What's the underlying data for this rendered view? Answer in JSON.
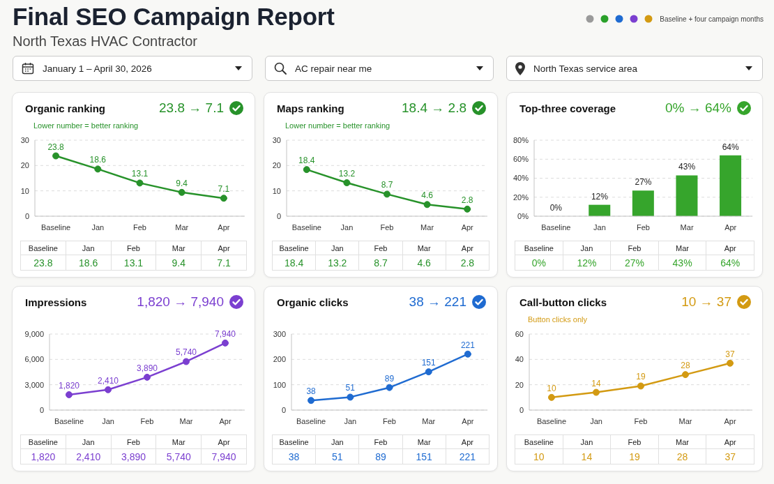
{
  "chart_data": [
    {
      "type": "other",
      "title": "Final SEO Campaign Report",
      "subtitle": "North Texas HVAC Contractor",
      "annotations": [
        "January 1 – April 30, 2026",
        "AC repair near me",
        "North Texas service area",
        "Baseline + four campaign months"
      ]
    },
    {
      "type": "line",
      "title": "Organic ranking",
      "subtitle": "Lower number = better ranking",
      "annotations": [
        "23.8 → 7.1"
      ],
      "categories": [
        "Baseline",
        "Jan",
        "Feb",
        "Mar",
        "Apr"
      ],
      "values": [
        23.8,
        18.6,
        13.1,
        9.4,
        7.1
      ],
      "value_labels": [
        "23.8",
        "18.6",
        "13.1",
        "9.4",
        "7.1"
      ],
      "color": "#27922a",
      "ylim": [
        0,
        30
      ],
      "yticks": [
        0,
        10,
        20,
        30
      ],
      "grid": "y",
      "marker": "circle",
      "line_style": "solid"
    },
    {
      "type": "line",
      "title": "Maps ranking",
      "subtitle": "Lower number = better ranking",
      "annotations": [
        "18.4 → 2.8"
      ],
      "categories": [
        "Baseline",
        "Jan",
        "Feb",
        "Mar",
        "Apr"
      ],
      "values": [
        18.4,
        13.2,
        8.7,
        4.6,
        2.8
      ],
      "value_labels": [
        "18.4",
        "13.2",
        "8.7",
        "4.6",
        "2.8"
      ],
      "color": "#27922a",
      "ylim": [
        0,
        30
      ],
      "yticks": [
        0,
        10,
        20,
        30
      ],
      "grid": "y",
      "marker": "circle",
      "line_style": "solid"
    },
    {
      "type": "bar",
      "title": "Top-three coverage",
      "annotations": [
        "0% → 64%"
      ],
      "categories": [
        "Baseline",
        "Jan",
        "Feb",
        "Mar",
        "Apr"
      ],
      "values": [
        0,
        12,
        27,
        43,
        64
      ],
      "value_labels": [
        "0%",
        "12%",
        "27%",
        "43%",
        "64%"
      ],
      "color": "#36a52c",
      "ylim": [
        0,
        80
      ],
      "yticks": [
        {
          "value": 0,
          "label": "0%"
        },
        {
          "value": 20,
          "label": "20%"
        },
        {
          "value": 40,
          "label": "40%"
        },
        {
          "value": 60,
          "label": "60%"
        },
        {
          "value": 80,
          "label": "80%"
        }
      ],
      "grid": "y"
    },
    {
      "type": "line",
      "title": "Impressions",
      "annotations": [
        "1,820 → 7,940"
      ],
      "categories": [
        "Baseline",
        "Jan",
        "Feb",
        "Mar",
        "Apr"
      ],
      "values": [
        1820,
        2410,
        3890,
        5740,
        7940
      ],
      "value_labels": [
        "1,820",
        "2,410",
        "3,890",
        "5,740",
        "7,940"
      ],
      "color": "#7b3fd0",
      "ylim": [
        0,
        9000
      ],
      "yticks": [
        0,
        {
          "value": 3000,
          "label": "3,000"
        },
        {
          "value": 6000,
          "label": "6,000"
        },
        {
          "value": 9000,
          "label": "9,000"
        }
      ],
      "grid": "y",
      "marker": "circle",
      "line_style": "solid"
    },
    {
      "type": "line",
      "title": "Organic clicks",
      "annotations": [
        "38 → 221"
      ],
      "categories": [
        "Baseline",
        "Jan",
        "Feb",
        "Mar",
        "Apr"
      ],
      "values": [
        38,
        51,
        89,
        151,
        221
      ],
      "value_labels": [
        "38",
        "51",
        "89",
        "151",
        "221"
      ],
      "color": "#1f6bd1",
      "ylim": [
        0,
        300
      ],
      "yticks": [
        0,
        100,
        200,
        300
      ],
      "grid": "y",
      "marker": "circle",
      "line_style": "solid"
    },
    {
      "type": "line",
      "title": "Call-button clicks",
      "subtitle": "Button clicks only",
      "annotations": [
        "10 → 37"
      ],
      "categories": [
        "Baseline",
        "Jan",
        "Feb",
        "Mar",
        "Apr"
      ],
      "values": [
        10,
        14,
        19,
        28,
        37
      ],
      "value_labels": [
        "10",
        "14",
        "19",
        "28",
        "37"
      ],
      "color": "#d39a12",
      "ylim": [
        0,
        60
      ],
      "yticks": [
        0,
        20,
        40,
        60
      ],
      "grid": "y",
      "marker": "circle",
      "line_style": "solid"
    }
  ]
}
